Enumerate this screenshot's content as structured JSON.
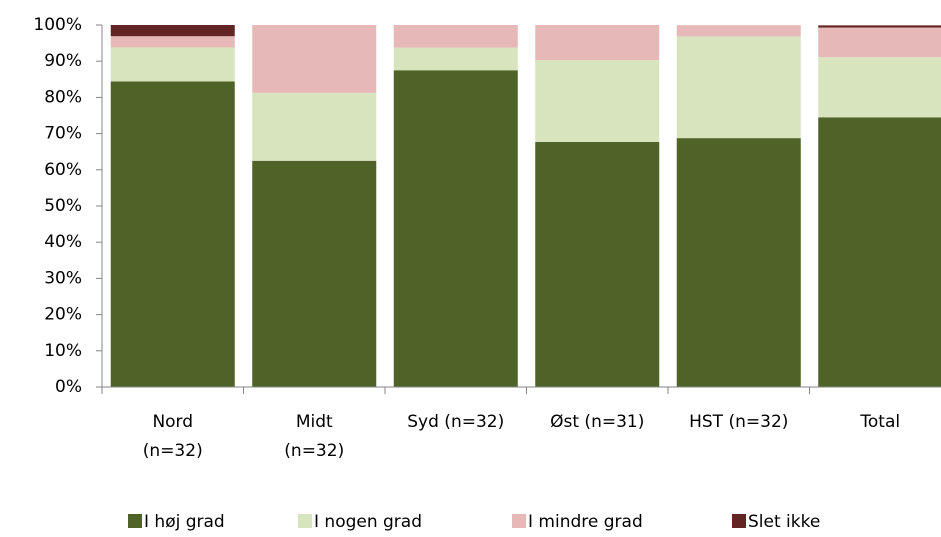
{
  "chart_data": {
    "type": "stacked_bar",
    "categories": [
      "Nord\n(n=32)",
      "Midt\n(n=32)",
      "Syd (n=32)",
      "Øst (n=31)",
      "HST (n=32)",
      "Total"
    ],
    "series": [
      {
        "name": "I høj grad",
        "color": "#4f6228",
        "values": [
          84.4,
          62.5,
          87.5,
          67.7,
          68.75,
          74.5
        ]
      },
      {
        "name": "I nogen grad",
        "color": "#d7e4bd",
        "values": [
          9.4,
          18.75,
          6.25,
          22.6,
          28.1,
          16.6
        ]
      },
      {
        "name": "I mindre grad",
        "color": "#e6b9b8",
        "values": [
          3.1,
          18.75,
          6.25,
          9.7,
          3.1,
          8.2
        ]
      },
      {
        "name": "Slet ikke",
        "color": "#632523",
        "values": [
          3.1,
          0,
          0,
          0,
          0,
          0.6
        ]
      }
    ],
    "ylim": [
      0,
      100
    ],
    "yticks": [
      {
        "value": 0,
        "label": "0%"
      },
      {
        "value": 10,
        "label": "10%"
      },
      {
        "value": 20,
        "label": "20%"
      },
      {
        "value": 30,
        "label": "30%"
      },
      {
        "value": 40,
        "label": "40%"
      },
      {
        "value": 50,
        "label": "50%"
      },
      {
        "value": 60,
        "label": "60%"
      },
      {
        "value": 70,
        "label": "70%"
      },
      {
        "value": 80,
        "label": "80%"
      },
      {
        "value": 90,
        "label": "90%"
      },
      {
        "value": 100,
        "label": "100%"
      }
    ],
    "legend": "bottom"
  }
}
